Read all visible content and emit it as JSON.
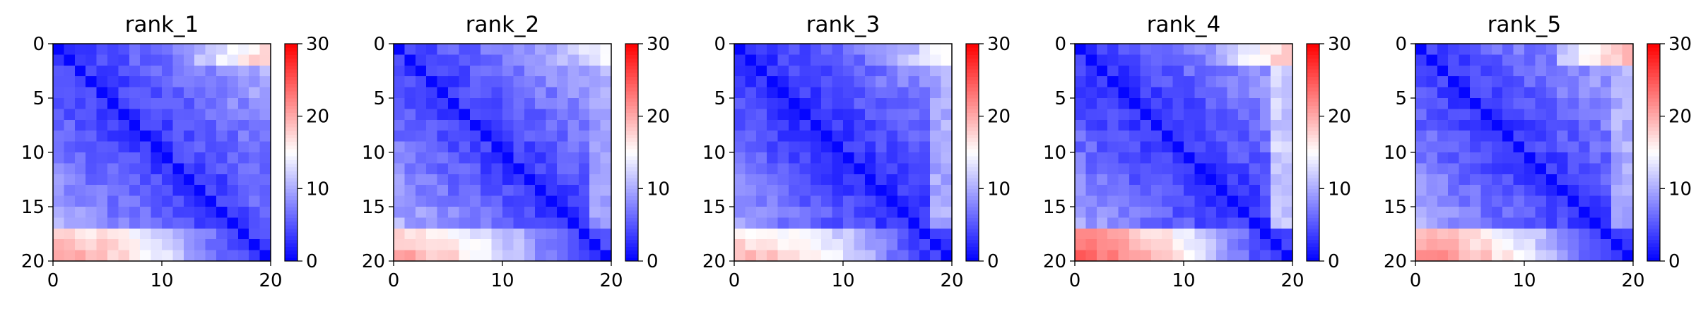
{
  "figure": {
    "background": "#ffffff"
  },
  "colormap": {
    "name": "bwr",
    "low": "#0000ff",
    "mid": "#ffffff",
    "high": "#ff0000"
  },
  "chart_data": [
    {
      "type": "heatmap",
      "title": "rank_1",
      "grid_size": 20,
      "xlim": [
        0,
        20
      ],
      "ylim": [
        20,
        0
      ],
      "x_ticks": [
        0,
        10,
        20
      ],
      "y_ticks": [
        0,
        5,
        10,
        15,
        20
      ],
      "colorbar": {
        "range": [
          0,
          30
        ],
        "ticks": [
          0,
          10,
          20,
          30
        ]
      },
      "features": {
        "base": 3.0,
        "slope": 0.42,
        "top_edge": 18,
        "right_edge": 6,
        "bottom_left": 22,
        "bottom_band": 14
      },
      "grid": false,
      "legend": "none"
    },
    {
      "type": "heatmap",
      "title": "rank_2",
      "grid_size": 20,
      "xlim": [
        0,
        20
      ],
      "ylim": [
        20,
        0
      ],
      "x_ticks": [
        0,
        10,
        20
      ],
      "y_ticks": [
        0,
        5,
        10,
        15,
        20
      ],
      "colorbar": {
        "range": [
          0,
          30
        ],
        "ticks": [
          0,
          10,
          20,
          30
        ]
      },
      "features": {
        "base": 3.0,
        "slope": 0.45,
        "top_edge": 15,
        "right_edge": 9,
        "bottom_left": 21,
        "bottom_band": 14
      },
      "grid": false,
      "legend": "none"
    },
    {
      "type": "heatmap",
      "title": "rank_3",
      "grid_size": 20,
      "xlim": [
        0,
        20
      ],
      "ylim": [
        20,
        0
      ],
      "x_ticks": [
        0,
        10,
        20
      ],
      "y_ticks": [
        0,
        5,
        10,
        15,
        20
      ],
      "colorbar": {
        "range": [
          0,
          30
        ],
        "ticks": [
          0,
          10,
          20,
          30
        ]
      },
      "features": {
        "base": 2.5,
        "slope": 0.4,
        "top_edge": 15,
        "right_edge": 10,
        "bottom_left": 20,
        "bottom_band": 15
      },
      "grid": false,
      "legend": "none"
    },
    {
      "type": "heatmap",
      "title": "rank_4",
      "grid_size": 20,
      "xlim": [
        0,
        20
      ],
      "ylim": [
        20,
        0
      ],
      "x_ticks": [
        0,
        10,
        20
      ],
      "y_ticks": [
        0,
        5,
        10,
        15,
        20
      ],
      "colorbar": {
        "range": [
          0,
          30
        ],
        "ticks": [
          0,
          10,
          20,
          30
        ]
      },
      "features": {
        "base": 2.5,
        "slope": 0.43,
        "top_edge": 18,
        "right_edge": 12,
        "bottom_left": 25,
        "bottom_band": 17
      },
      "grid": false,
      "legend": "none"
    },
    {
      "type": "heatmap",
      "title": "rank_5",
      "grid_size": 20,
      "xlim": [
        0,
        20
      ],
      "ylim": [
        20,
        0
      ],
      "x_ticks": [
        0,
        10,
        20
      ],
      "y_ticks": [
        0,
        5,
        10,
        15,
        20
      ],
      "colorbar": {
        "range": [
          0,
          30
        ],
        "ticks": [
          0,
          10,
          20,
          30
        ]
      },
      "features": {
        "base": 3.0,
        "slope": 0.42,
        "top_edge": 19,
        "right_edge": 10,
        "bottom_left": 23,
        "bottom_band": 15
      },
      "grid": false,
      "legend": "none"
    }
  ]
}
